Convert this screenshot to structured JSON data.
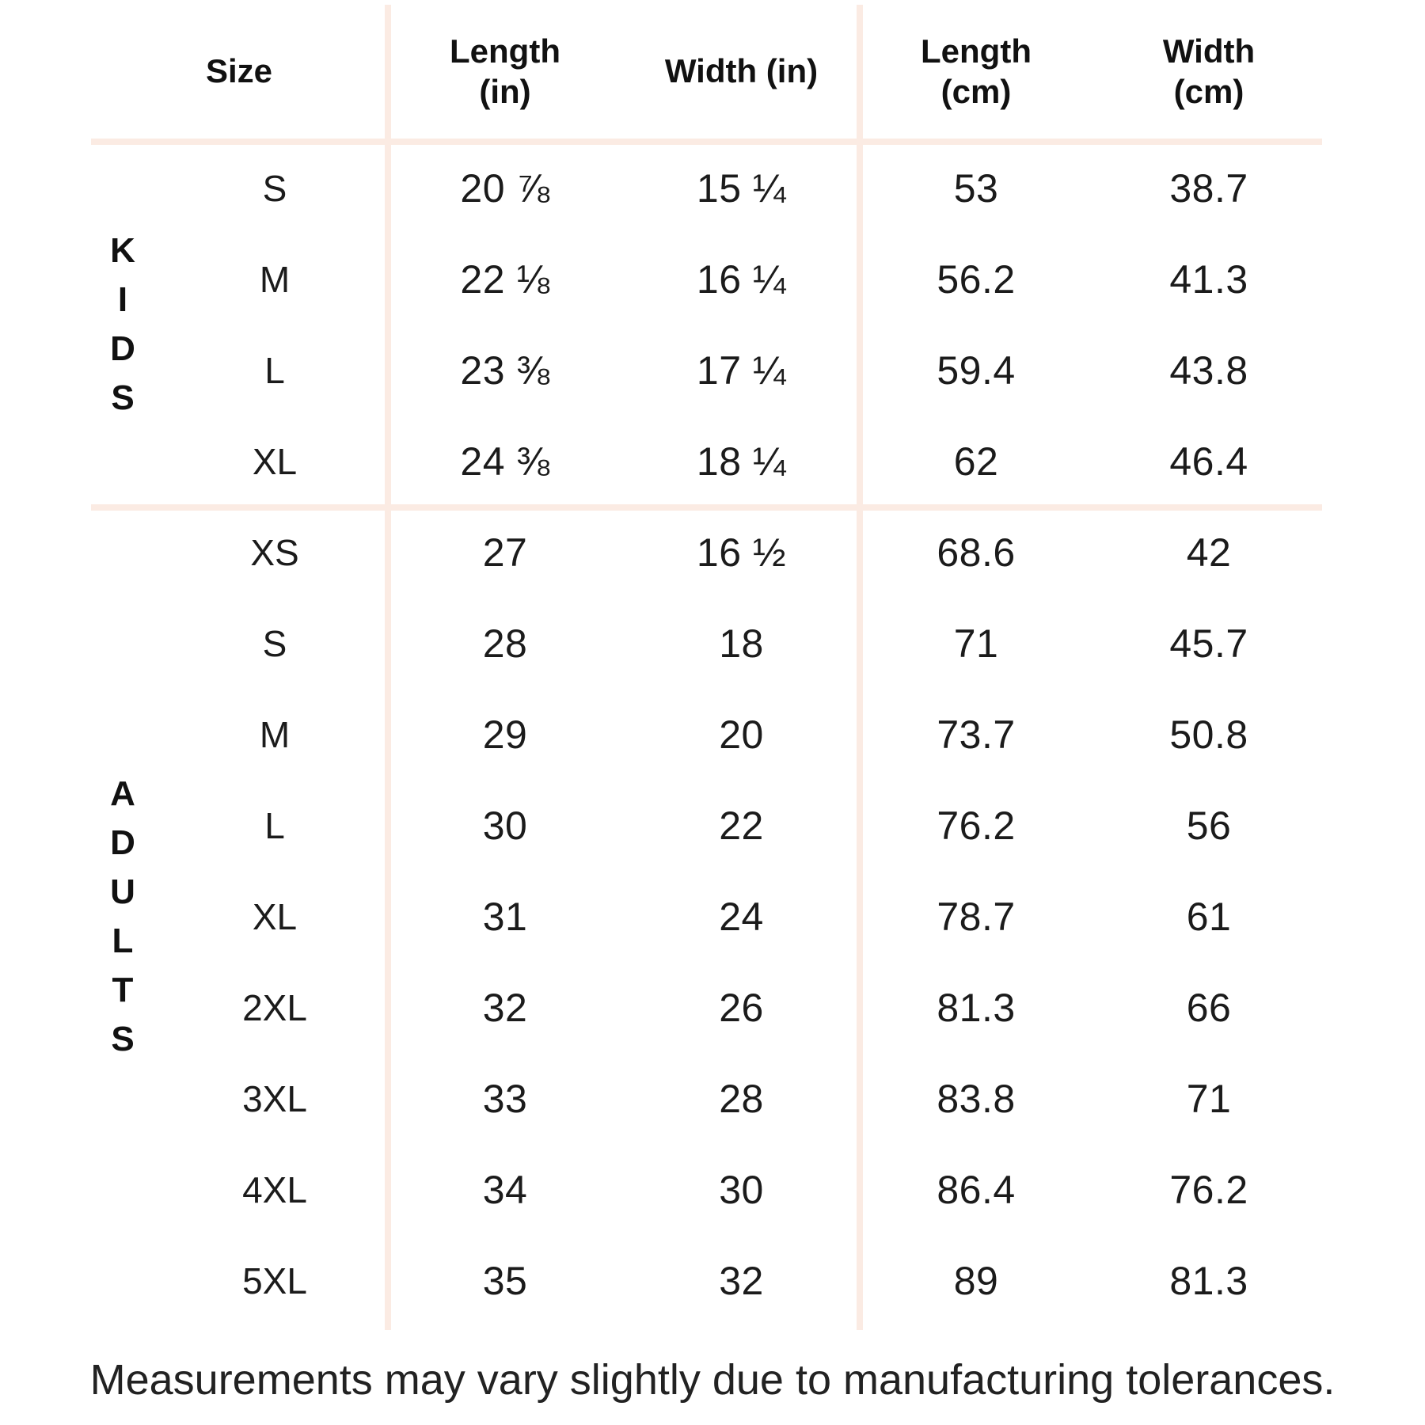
{
  "table": {
    "headers": {
      "size": "Size",
      "length_in": "Length\n(in)",
      "width_in": "Width (in)",
      "length_cm": "Length\n(cm)",
      "width_cm": "Width\n(cm)"
    },
    "groups": [
      {
        "label": "KIDS",
        "rows": [
          {
            "size": "S",
            "length_in": "20 ⅞",
            "width_in": "15 ¼",
            "length_cm": "53",
            "width_cm": "38.7"
          },
          {
            "size": "M",
            "length_in": "22 ⅛",
            "width_in": "16 ¼",
            "length_cm": "56.2",
            "width_cm": "41.3"
          },
          {
            "size": "L",
            "length_in": "23 ⅜",
            "width_in": "17 ¼",
            "length_cm": "59.4",
            "width_cm": "43.8"
          },
          {
            "size": "XL",
            "length_in": "24 ⅜",
            "width_in": "18 ¼",
            "length_cm": "62",
            "width_cm": "46.4"
          }
        ]
      },
      {
        "label": "ADULTS",
        "rows": [
          {
            "size": "XS",
            "length_in": "27",
            "width_in": "16 ½",
            "length_cm": "68.6",
            "width_cm": "42"
          },
          {
            "size": "S",
            "length_in": "28",
            "width_in": "18",
            "length_cm": "71",
            "width_cm": "45.7"
          },
          {
            "size": "M",
            "length_in": "29",
            "width_in": "20",
            "length_cm": "73.7",
            "width_cm": "50.8"
          },
          {
            "size": "L",
            "length_in": "30",
            "width_in": "22",
            "length_cm": "76.2",
            "width_cm": "56"
          },
          {
            "size": "XL",
            "length_in": "31",
            "width_in": "24",
            "length_cm": "78.7",
            "width_cm": "61"
          },
          {
            "size": "2XL",
            "length_in": "32",
            "width_in": "26",
            "length_cm": "81.3",
            "width_cm": "66"
          },
          {
            "size": "3XL",
            "length_in": "33",
            "width_in": "28",
            "length_cm": "83.8",
            "width_cm": "71"
          },
          {
            "size": "4XL",
            "length_in": "34",
            "width_in": "30",
            "length_cm": "86.4",
            "width_cm": "76.2"
          },
          {
            "size": "5XL",
            "length_in": "35",
            "width_in": "32",
            "length_cm": "89",
            "width_cm": "81.3"
          }
        ]
      }
    ]
  },
  "footer": {
    "note": "Measurements may vary slightly due to manufacturing tolerances."
  },
  "colors": {
    "divider": "#fbebe3",
    "text": "#1b1b1b"
  },
  "chart_data": {
    "type": "table",
    "columns": [
      "Size",
      "Length (in)",
      "Width (in)",
      "Length (cm)",
      "Width (cm)"
    ],
    "row_groups": [
      {
        "group": "KIDS",
        "rows": [
          [
            "S",
            "20 ⅞",
            "15 ¼",
            53,
            38.7
          ],
          [
            "M",
            "22 ⅛",
            "16 ¼",
            56.2,
            41.3
          ],
          [
            "L",
            "23 ⅜",
            "17 ¼",
            59.4,
            43.8
          ],
          [
            "XL",
            "24 ⅜",
            "18 ¼",
            62,
            46.4
          ]
        ]
      },
      {
        "group": "ADULTS",
        "rows": [
          [
            "XS",
            27,
            "16 ½",
            68.6,
            42
          ],
          [
            "S",
            28,
            18,
            71,
            45.7
          ],
          [
            "M",
            29,
            20,
            73.7,
            50.8
          ],
          [
            "L",
            30,
            22,
            76.2,
            56
          ],
          [
            "XL",
            31,
            24,
            78.7,
            61
          ],
          [
            "2XL",
            32,
            26,
            81.3,
            66
          ],
          [
            "3XL",
            33,
            28,
            83.8,
            71
          ],
          [
            "4XL",
            34,
            30,
            86.4,
            76.2
          ],
          [
            "5XL",
            35,
            32,
            89,
            81.3
          ]
        ]
      }
    ],
    "footnote": "Measurements may vary slightly due to manufacturing tolerances."
  }
}
